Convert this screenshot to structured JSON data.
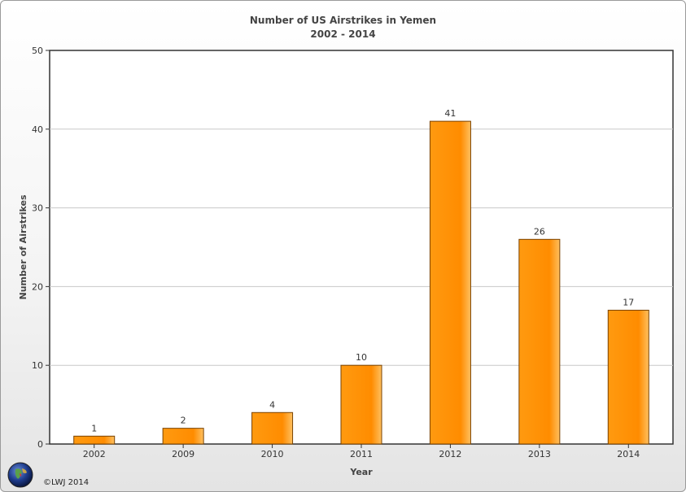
{
  "chart_data": {
    "type": "bar",
    "title": "Number of US Airstrikes in Yemen",
    "subtitle": "2002 - 2014",
    "xlabel": "Year",
    "ylabel": "Number of Airstrikes",
    "categories": [
      "2002",
      "2009",
      "2010",
      "2011",
      "2012",
      "2013",
      "2014"
    ],
    "values": [
      1,
      2,
      4,
      10,
      41,
      26,
      17
    ],
    "ylim": [
      0,
      50
    ],
    "yticks": [
      0,
      10,
      20,
      30,
      40,
      50
    ],
    "grid": true,
    "bar_color": "#ff8c00",
    "bar_edge_color": "#7a4200"
  },
  "footer": {
    "credit": "©LWJ 2014",
    "logo_icon": "globe-icon"
  }
}
